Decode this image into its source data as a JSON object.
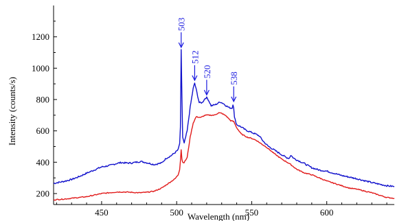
{
  "chart_data": {
    "type": "line",
    "xlabel": "Wavelength (nm)",
    "ylabel": "Intensity (counts/s)",
    "xlim": [
      418,
      645
    ],
    "ylim": [
      130,
      1400
    ],
    "x_ticks": [
      450,
      500,
      550,
      600
    ],
    "y_ticks": [
      200,
      400,
      600,
      800,
      1000,
      1200
    ],
    "grid": false,
    "series": [
      {
        "color": "#1111cc",
        "x": [
          418,
          425,
          430,
          435,
          440,
          445,
          450,
          455,
          460,
          463,
          466,
          470,
          473,
          476,
          480,
          485,
          490,
          493,
          496,
          499,
          501,
          502,
          502.5,
          503,
          503.5,
          504,
          505,
          507,
          509,
          511,
          512,
          513,
          515,
          517,
          519,
          520,
          521,
          523,
          526,
          529,
          531,
          533,
          535,
          537,
          537.5,
          538,
          538.5,
          540,
          543,
          546,
          550,
          553,
          555,
          558,
          561,
          565,
          570,
          573,
          575,
          576,
          578,
          580,
          585,
          590,
          595,
          600,
          610,
          620,
          630,
          640,
          645
        ],
        "y": [
          265,
          278,
          290,
          308,
          330,
          350,
          370,
          378,
          392,
          398,
          395,
          395,
          400,
          405,
          397,
          385,
          395,
          425,
          440,
          462,
          480,
          520,
          620,
          1115,
          820,
          560,
          520,
          600,
          750,
          870,
          905,
          865,
          780,
          780,
          808,
          812,
          800,
          760,
          768,
          785,
          775,
          760,
          748,
          745,
          770,
          750,
          685,
          640,
          625,
          605,
          590,
          578,
          568,
          530,
          502,
          478,
          448,
          430,
          425,
          445,
          425,
          415,
          392,
          365,
          350,
          343,
          315,
          295,
          270,
          250,
          245
        ]
      },
      {
        "color": "#e11a1a",
        "x": [
          418,
          425,
          430,
          435,
          440,
          445,
          450,
          455,
          460,
          465,
          470,
          475,
          480,
          485,
          490,
          493,
          496,
          499,
          501,
          502,
          502.5,
          503,
          503.5,
          504,
          505,
          507,
          509,
          511,
          513,
          516,
          519,
          522,
          525,
          528,
          530,
          533,
          536,
          538,
          540,
          543,
          547,
          550,
          553,
          556,
          560,
          565,
          570,
          575,
          580,
          585,
          590,
          595,
          600,
          605,
          610,
          615,
          620,
          630,
          640,
          645
        ],
        "y": [
          160,
          165,
          170,
          175,
          180,
          190,
          200,
          205,
          210,
          210,
          208,
          205,
          208,
          215,
          235,
          255,
          275,
          295,
          320,
          355,
          410,
          480,
          420,
          400,
          398,
          430,
          560,
          650,
          690,
          685,
          700,
          700,
          700,
          715,
          712,
          695,
          665,
          660,
          620,
          580,
          560,
          552,
          540,
          520,
          495,
          455,
          420,
          392,
          355,
          332,
          320,
          300,
          280,
          265,
          250,
          235,
          228,
          205,
          175,
          170
        ]
      }
    ],
    "annotations": [
      {
        "text": "503",
        "x": 503,
        "y": 1115
      },
      {
        "text": "512",
        "x": 512,
        "y": 905
      },
      {
        "text": "520",
        "x": 520,
        "y": 812
      },
      {
        "text": "538",
        "x": 538,
        "y": 770
      }
    ]
  }
}
